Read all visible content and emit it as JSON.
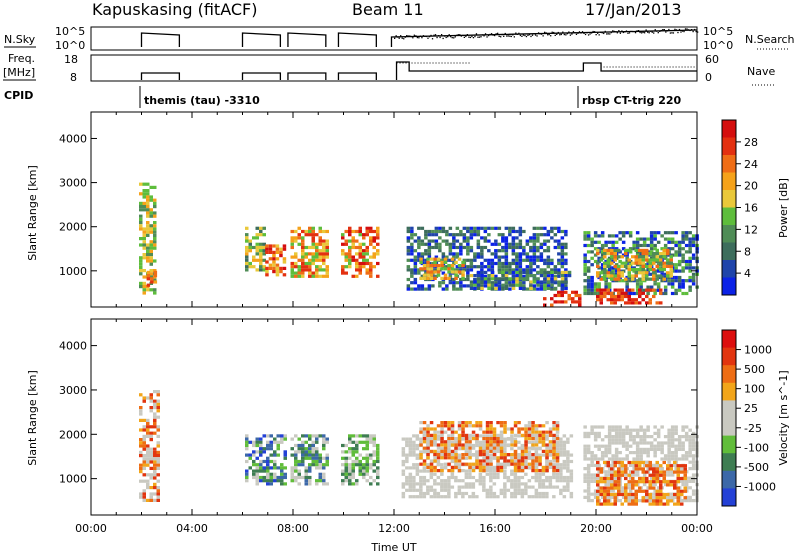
{
  "header": {
    "station": "Kapuskasing (fitACF)",
    "beam": "Beam 11",
    "date": "17/Jan/2013"
  },
  "panels": {
    "nsky": {
      "label": "N.Sky",
      "ticks": [
        "10^5",
        "10^0"
      ]
    },
    "nsearch": {
      "label": "N.Search",
      "ticks": [
        "10^5",
        "10^0"
      ]
    },
    "freq": {
      "label_line1": "Freq.",
      "label_line2": "[MHz]",
      "ticks": [
        "18",
        "8"
      ]
    },
    "nave": {
      "label": "Nave",
      "ticks": [
        "60",
        "0"
      ]
    },
    "cpid": {
      "label": "CPID",
      "annotations": [
        {
          "text": "themis (tau) -3310",
          "start_hour": 2.0
        },
        {
          "text": "rbsp CT-trig 220",
          "start_hour": 19.4
        }
      ]
    }
  },
  "colors": {
    "power": [
      "#0b22e6",
      "#1f44aa",
      "#3d6d5c",
      "#4f8c56",
      "#5ebd3c",
      "#e9c83a",
      "#f5a21a",
      "#ef6d16",
      "#e33010",
      "#d40e0e"
    ],
    "velocity": [
      "#2441d6",
      "#3c68a8",
      "#3e7d52",
      "#61bd3a",
      "#c9c9c1",
      "#c9c9c1",
      "#f2a51a",
      "#ee6d14",
      "#e2350f",
      "#dc0e0e"
    ]
  },
  "chart_data": [
    {
      "type": "heatmap",
      "name": "power",
      "ylabel": "Slant Range [km]",
      "yticks": [
        1000,
        2000,
        3000,
        4000
      ],
      "ylim": [
        180,
        4600
      ],
      "xlim": [
        0,
        24
      ],
      "colorbar": {
        "label": "Power [dB]",
        "ticks": [
          4,
          8,
          12,
          16,
          20,
          24,
          28
        ],
        "range": [
          0,
          32
        ]
      },
      "blobs": [
        {
          "t0": 1.9,
          "t1": 2.5,
          "r0": 500,
          "r1": 3000,
          "level": [
            3,
            6
          ]
        },
        {
          "t0": 2.2,
          "t1": 2.6,
          "r0": 700,
          "r1": 1000,
          "level": [
            6,
            8
          ]
        },
        {
          "t0": 6.1,
          "t1": 6.9,
          "r0": 1000,
          "r1": 2000,
          "level": [
            2,
            6
          ]
        },
        {
          "t0": 6.9,
          "t1": 7.7,
          "r0": 900,
          "r1": 1600,
          "level": [
            5,
            9
          ]
        },
        {
          "t0": 7.9,
          "t1": 9.3,
          "r0": 900,
          "r1": 2000,
          "level": [
            4,
            8
          ]
        },
        {
          "t0": 9.9,
          "t1": 11.3,
          "r0": 900,
          "r1": 2000,
          "level": [
            4,
            9
          ]
        },
        {
          "t0": 12.5,
          "t1": 18.8,
          "r0": 600,
          "r1": 2000,
          "level": [
            0,
            3
          ]
        },
        {
          "t0": 13.0,
          "t1": 14.8,
          "r0": 800,
          "r1": 1300,
          "level": [
            4,
            7
          ]
        },
        {
          "t0": 15.0,
          "t1": 18.9,
          "r0": 600,
          "r1": 1000,
          "level": [
            0,
            5
          ]
        },
        {
          "t0": 17.9,
          "t1": 19.3,
          "r0": 250,
          "r1": 550,
          "level": [
            7,
            9
          ]
        },
        {
          "t0": 19.5,
          "t1": 24.0,
          "r0": 500,
          "r1": 1900,
          "level": [
            0,
            4
          ]
        },
        {
          "t0": 20.0,
          "t1": 23.0,
          "r0": 800,
          "r1": 1500,
          "level": [
            3,
            7
          ]
        },
        {
          "t0": 20.0,
          "t1": 22.5,
          "r0": 250,
          "r1": 600,
          "level": [
            7,
            9
          ]
        }
      ]
    },
    {
      "type": "heatmap",
      "name": "velocity",
      "ylabel": "Slant Range [km]",
      "yticks": [
        1000,
        2000,
        3000,
        4000
      ],
      "ylim": [
        180,
        4600
      ],
      "xlim": [
        0,
        24
      ],
      "xlabel": "Time UT",
      "xticks": [
        "00:00",
        "04:00",
        "08:00",
        "12:00",
        "16:00",
        "20:00",
        "00:00"
      ],
      "colorbar": {
        "label": "Velocity [m s^-1]",
        "ticks": [
          "1000",
          "500",
          "100",
          "25",
          "-25",
          "-100",
          "-500",
          "-1000"
        ]
      },
      "blobs": [
        {
          "t0": 1.9,
          "t1": 2.6,
          "r0": 500,
          "r1": 3000,
          "level": [
            4,
            8
          ]
        },
        {
          "t0": 6.1,
          "t1": 7.7,
          "r0": 900,
          "r1": 2000,
          "level": [
            0,
            4
          ]
        },
        {
          "t0": 7.9,
          "t1": 9.3,
          "r0": 900,
          "r1": 2000,
          "level": [
            1,
            5
          ]
        },
        {
          "t0": 9.9,
          "t1": 11.3,
          "r0": 900,
          "r1": 2000,
          "level": [
            2,
            5
          ]
        },
        {
          "t0": 12.3,
          "t1": 19.0,
          "r0": 600,
          "r1": 2000,
          "level": [
            4,
            5
          ]
        },
        {
          "t0": 13.0,
          "t1": 18.5,
          "r0": 1200,
          "r1": 2300,
          "level": [
            5,
            8
          ]
        },
        {
          "t0": 19.5,
          "t1": 24.0,
          "r0": 500,
          "r1": 2200,
          "level": [
            4,
            5
          ]
        },
        {
          "t0": 20.0,
          "t1": 23.5,
          "r0": 400,
          "r1": 1400,
          "level": [
            6,
            8
          ]
        }
      ]
    }
  ]
}
